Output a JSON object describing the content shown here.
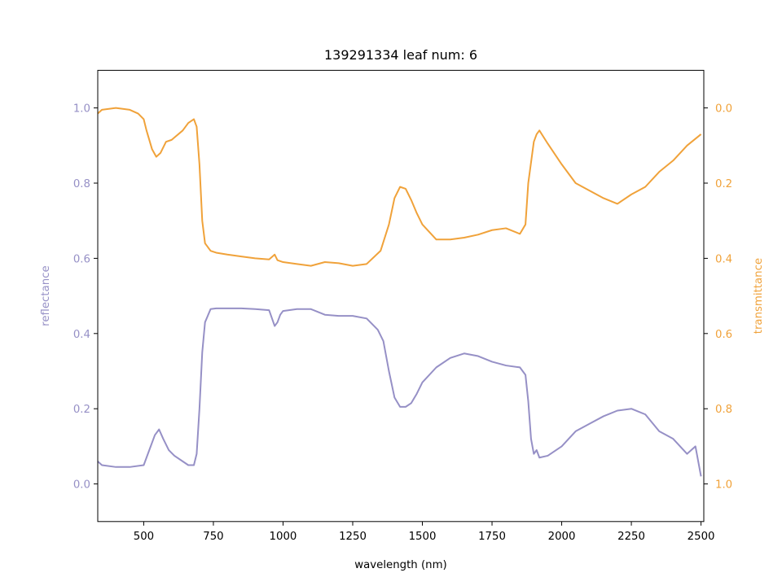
{
  "chart_data": {
    "type": "line",
    "title": "139291334 leaf num: 6",
    "xlabel": "wavelength (nm)",
    "ylabel_left": "reflectance",
    "ylabel_right": "transmittance",
    "xlim": [
      335,
      2510
    ],
    "ylim_left": [
      -0.1,
      1.1
    ],
    "ylim_right": [
      1.1,
      -0.1
    ],
    "right_axis_inverted": true,
    "grid": false,
    "x_ticks": [
      500,
      750,
      1000,
      1250,
      1500,
      1750,
      2000,
      2250,
      2500
    ],
    "y_left_ticks": [
      0.0,
      0.2,
      0.4,
      0.6,
      0.8,
      1.0
    ],
    "y_left_tick_labels": [
      "0.0",
      "0.2",
      "0.4",
      "0.6",
      "0.8",
      "1.0"
    ],
    "y_right_ticks": [
      0.0,
      0.2,
      0.4,
      0.6,
      0.8,
      1.0
    ],
    "y_right_tick_labels": [
      "0.0",
      "0.2",
      "0.4",
      "0.6",
      "0.8",
      "1.0"
    ],
    "colors": {
      "reflectance": "#9690c6",
      "transmittance": "#f0a23a",
      "axis": "#000000"
    },
    "series": [
      {
        "axis": "left",
        "color_key": "reflectance",
        "x": [
          335,
          350,
          400,
          450,
          500,
          520,
          540,
          555,
          570,
          590,
          610,
          640,
          660,
          680,
          690,
          700,
          710,
          720,
          740,
          760,
          800,
          850,
          900,
          950,
          970,
          980,
          990,
          1000,
          1050,
          1100,
          1150,
          1200,
          1250,
          1300,
          1340,
          1360,
          1380,
          1400,
          1420,
          1440,
          1460,
          1480,
          1500,
          1550,
          1600,
          1650,
          1700,
          1750,
          1800,
          1850,
          1870,
          1880,
          1890,
          1900,
          1910,
          1920,
          1950,
          2000,
          2050,
          2100,
          2150,
          2200,
          2250,
          2300,
          2350,
          2400,
          2450,
          2480,
          2500
        ],
        "y": [
          0.06,
          0.05,
          0.045,
          0.045,
          0.05,
          0.09,
          0.13,
          0.145,
          0.12,
          0.09,
          0.075,
          0.06,
          0.05,
          0.05,
          0.08,
          0.2,
          0.35,
          0.43,
          0.465,
          0.467,
          0.467,
          0.467,
          0.465,
          0.462,
          0.42,
          0.43,
          0.45,
          0.46,
          0.465,
          0.465,
          0.45,
          0.447,
          0.447,
          0.44,
          0.41,
          0.38,
          0.3,
          0.23,
          0.205,
          0.205,
          0.215,
          0.24,
          0.27,
          0.31,
          0.335,
          0.347,
          0.34,
          0.325,
          0.315,
          0.31,
          0.29,
          0.22,
          0.12,
          0.08,
          0.09,
          0.07,
          0.075,
          0.1,
          0.14,
          0.16,
          0.18,
          0.195,
          0.2,
          0.185,
          0.14,
          0.12,
          0.08,
          0.1,
          0.02
        ]
      },
      {
        "axis": "right",
        "color_key": "transmittance",
        "x": [
          335,
          350,
          400,
          450,
          480,
          500,
          510,
          530,
          545,
          560,
          580,
          600,
          640,
          660,
          680,
          690,
          700,
          710,
          720,
          740,
          760,
          800,
          850,
          900,
          950,
          970,
          980,
          1000,
          1050,
          1100,
          1150,
          1200,
          1250,
          1300,
          1350,
          1380,
          1400,
          1420,
          1440,
          1460,
          1480,
          1500,
          1550,
          1600,
          1650,
          1700,
          1750,
          1800,
          1850,
          1870,
          1880,
          1900,
          1910,
          1920,
          1950,
          2000,
          2050,
          2100,
          2150,
          2200,
          2250,
          2300,
          2350,
          2400,
          2450,
          2500
        ],
        "y": [
          0.015,
          0.005,
          0.0,
          0.005,
          0.015,
          0.03,
          0.06,
          0.11,
          0.13,
          0.12,
          0.09,
          0.085,
          0.06,
          0.04,
          0.03,
          0.05,
          0.15,
          0.3,
          0.36,
          0.38,
          0.385,
          0.39,
          0.395,
          0.4,
          0.403,
          0.39,
          0.405,
          0.41,
          0.415,
          0.42,
          0.41,
          0.413,
          0.42,
          0.415,
          0.38,
          0.31,
          0.24,
          0.21,
          0.215,
          0.245,
          0.28,
          0.31,
          0.35,
          0.35,
          0.345,
          0.337,
          0.325,
          0.32,
          0.335,
          0.31,
          0.2,
          0.09,
          0.07,
          0.06,
          0.095,
          0.15,
          0.2,
          0.22,
          0.24,
          0.255,
          0.23,
          0.21,
          0.17,
          0.14,
          0.1,
          0.07
        ]
      }
    ]
  }
}
